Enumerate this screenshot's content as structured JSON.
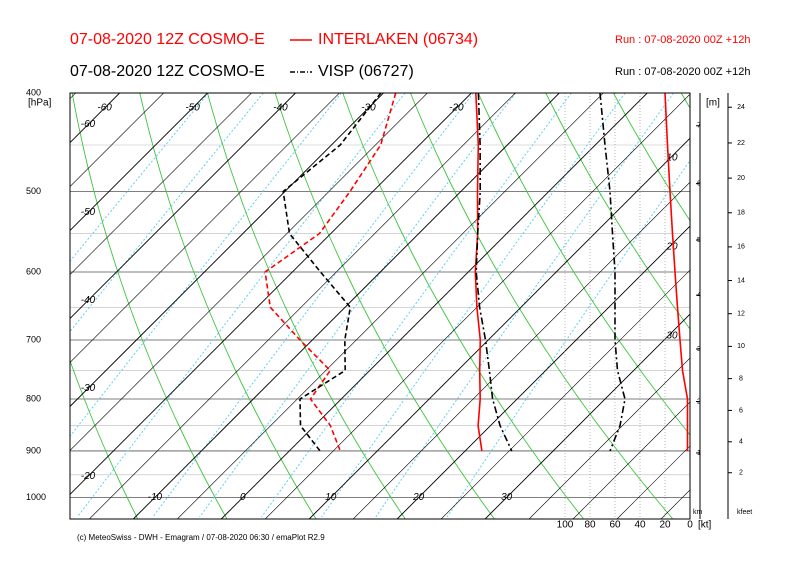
{
  "chart_data": {
    "type": "emagram",
    "stations": [
      {
        "model": "07-08-2020 12Z COSMO-E",
        "name": "INTERLAKEN (06734)",
        "run": "Run : 07-08-2020 00Z +12h",
        "color": "#ff0000",
        "line_style": "solid",
        "temperature": [
          -19.5,
          -13.3,
          -8.1,
          -3.3,
          0.8,
          5.0,
          9.1,
          12.5,
          15.8,
          18.6,
          21.9
        ],
        "dewpoint": [
          -28.6,
          -24.4,
          -22.6,
          -21.3,
          -23.1,
          -18.5,
          -11.4,
          -4.5,
          -3.5,
          1.8,
          5.8
        ],
        "wind_speed": [
          20,
          18,
          16,
          14,
          12,
          10,
          8,
          6,
          2,
          2,
          2
        ]
      },
      {
        "model": "07-08-2020 12Z COSMO-E",
        "name": "VISP (06727)",
        "run": "Run : 07-08-2020 00Z +12h",
        "color": "#000000",
        "line_style": "dashdot",
        "temperature": [
          -19.2,
          -13.1,
          -7.8,
          -3.3,
          0.9,
          5.3,
          9.7,
          13.6,
          17.2,
          21.1,
          25.3
        ],
        "dewpoint": [
          -30.3,
          -29.0,
          -30.2,
          -24.7,
          -16.8,
          -9.4,
          -6.3,
          -2.8,
          -4.7,
          -1.6,
          3.5
        ],
        "wind_speed": [
          72,
          68,
          64,
          62,
          60,
          60,
          60,
          58,
          52,
          56,
          64
        ]
      }
    ],
    "pressure": [
      400,
      450,
      500,
      550,
      600,
      650,
      700,
      750,
      800,
      850,
      900
    ],
    "ylim": [
      400,
      1050
    ],
    "log_scale": true,
    "yticks": [
      400,
      500,
      600,
      700,
      800,
      900,
      1000
    ],
    "y_unit": "[hPa]",
    "xlim": [
      -17.2,
      53.3
    ],
    "skew_deg": 45,
    "xticks": [
      -60,
      -50,
      -40,
      -30,
      -20,
      -10,
      0,
      10,
      20,
      30
    ],
    "height_unit": "[m]",
    "km_ticks": [
      1,
      2,
      3,
      4,
      5,
      6,
      7
    ],
    "km_label": "km",
    "kfeet_ticks": [
      2,
      4,
      6,
      8,
      10,
      12,
      14,
      16,
      18,
      20,
      22,
      24
    ],
    "kfeet_label": "kfeet",
    "wind_lim": [
      0,
      100
    ],
    "wind_ticks": [
      100,
      80,
      60,
      40,
      20,
      0
    ],
    "wind_unit": "[kt]",
    "wind_panel_labels": [
      10,
      20,
      30
    ],
    "footer": "(c) MeteoSwiss - DWH - Emagram / 07-08-2020  06:30 / emaPlot R2.9"
  }
}
